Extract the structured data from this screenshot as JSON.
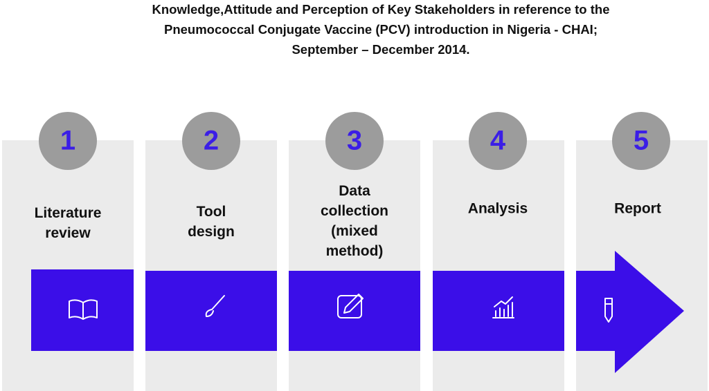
{
  "title_lines": [
    "Knowledge,Attitude and Perception of Key Stakeholders in reference to the",
    "Pneumococcal Conjugate Vaccine (PCV) introduction in Nigeria - CHAI;",
    "September – December 2014."
  ],
  "steps": [
    {
      "number": "1",
      "label_lines": [
        "Literature",
        "review"
      ]
    },
    {
      "number": "2",
      "label_lines": [
        "Tool",
        "design"
      ]
    },
    {
      "number": "3",
      "label_lines": [
        "Data",
        "collection",
        "(mixed",
        "method)"
      ]
    },
    {
      "number": "4",
      "label_lines": [
        "Analysis"
      ]
    },
    {
      "number": "5",
      "label_lines": [
        "Report"
      ]
    }
  ]
}
